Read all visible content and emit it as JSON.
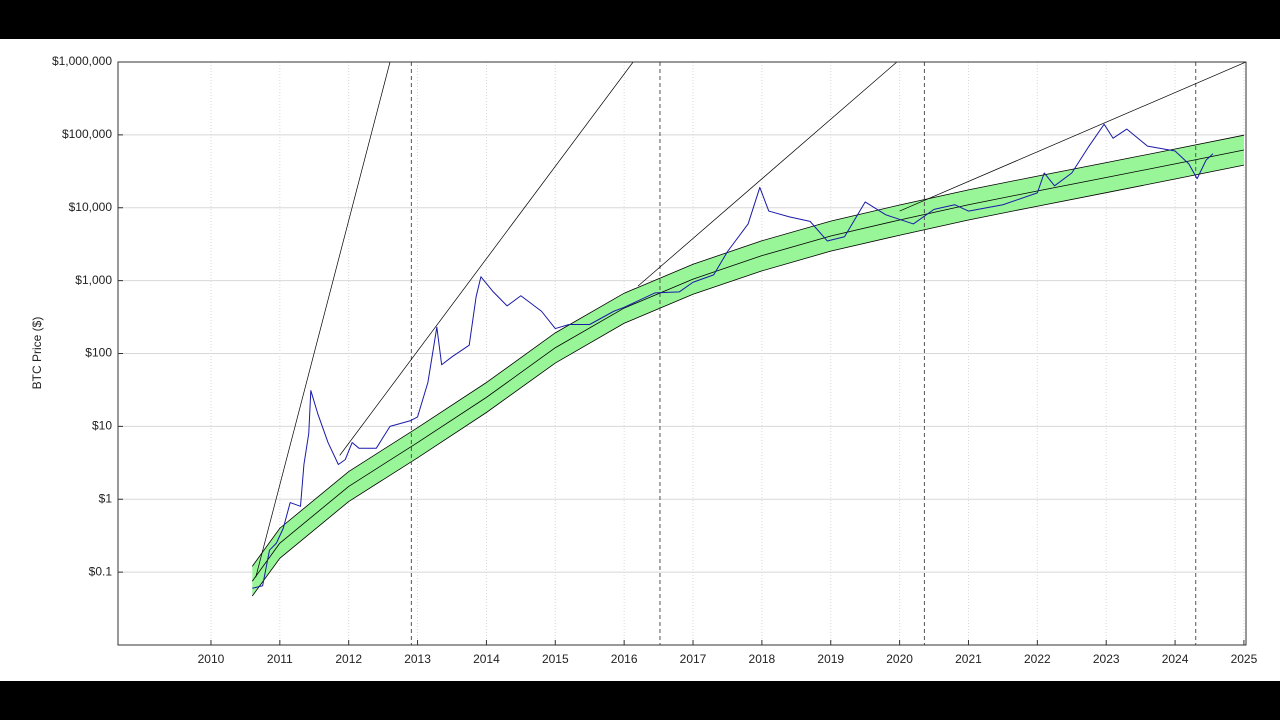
{
  "chart_data": {
    "type": "line",
    "y_label": "BTC Price ($)",
    "log_y": true,
    "grid": true,
    "xlim": [
      2008.65,
      2025.03
    ],
    "ylim": [
      0.01,
      1000000
    ],
    "xticks": [
      2010,
      2011,
      2012,
      2013,
      2014,
      2015,
      2016,
      2017,
      2018,
      2019,
      2020,
      2021,
      2022,
      2023,
      2024,
      2025
    ],
    "yticks": [
      {
        "value": 0.1,
        "label": "$0.1"
      },
      {
        "value": 1,
        "label": "$1"
      },
      {
        "value": 10,
        "label": "$10"
      },
      {
        "value": 100,
        "label": "$100"
      },
      {
        "value": 1000,
        "label": "$1,000"
      },
      {
        "value": 10000,
        "label": "$10,000"
      },
      {
        "value": 100000,
        "label": "$100,000"
      },
      {
        "value": 1000000,
        "label": "$1,000,000"
      }
    ],
    "band": {
      "color": "#98f598",
      "x": [
        2010.6,
        2011,
        2012,
        2013,
        2014,
        2015,
        2016,
        2017,
        2018,
        2019,
        2020,
        2021,
        2022,
        2023,
        2024,
        2025
      ],
      "upper": [
        0.12,
        0.4,
        2.4,
        9.6,
        40,
        192,
        672,
        1680,
        3520,
        6560,
        10900,
        17600,
        27200,
        41600,
        64000,
        99000
      ],
      "lower": [
        0.047,
        0.155,
        0.93,
        3.7,
        15.5,
        74,
        260,
        650,
        1360,
        2540,
        4200,
        6800,
        10500,
        16100,
        24800,
        38400
      ]
    },
    "vlines": {
      "color": "#555555",
      "dashed": true,
      "x": [
        2012.91,
        2016.52,
        2020.36,
        2024.3
      ]
    },
    "series": [
      {
        "color": "#000000",
        "width": 0.8,
        "x": [
          2010.6,
          2011,
          2012,
          2013,
          2014,
          2015,
          2016,
          2017,
          2018,
          2019,
          2020,
          2021,
          2022,
          2023,
          2024,
          2025
        ],
        "values": [
          0.075,
          0.25,
          1.5,
          6,
          25,
          120,
          420,
          1050,
          2200,
          4100,
          6800,
          11000,
          17000,
          26000,
          40000,
          62000
        ]
      },
      {
        "color": "#000000",
        "width": 0.7,
        "x": [
          2010.65,
          2012.6
        ],
        "values": [
          0.085,
          1000000
        ]
      },
      {
        "color": "#000000",
        "width": 0.7,
        "x": [
          2011.87,
          2016.13
        ],
        "values": [
          4,
          1000000
        ]
      },
      {
        "color": "#000000",
        "width": 0.7,
        "x": [
          2016.2,
          2019.96
        ],
        "values": [
          840,
          1000000
        ]
      },
      {
        "color": "#000000",
        "width": 0.7,
        "x": [
          2020.0,
          2025.03
        ],
        "values": [
          9000,
          1000000
        ]
      },
      {
        "color": "#1a1aa8",
        "width": 1,
        "x": [
          2010.6,
          2010.75,
          2010.85,
          2010.95,
          2011.05,
          2011.15,
          2011.3,
          2011.35,
          2011.42,
          2011.45,
          2011.55,
          2011.7,
          2011.85,
          2011.95,
          2012.05,
          2012.15,
          2012.4,
          2012.6,
          2012.9,
          2013.0,
          2013.15,
          2013.28,
          2013.35,
          2013.5,
          2013.75,
          2013.85,
          2013.92,
          2014.1,
          2014.3,
          2014.5,
          2014.8,
          2015.0,
          2015.2,
          2015.5,
          2015.85,
          2016.0,
          2016.45,
          2016.8,
          2017.0,
          2017.3,
          2017.5,
          2017.8,
          2017.97,
          2018.1,
          2018.4,
          2018.7,
          2018.95,
          2019.2,
          2019.5,
          2019.8,
          2020.2,
          2020.5,
          2020.8,
          2021.0,
          2021.5,
          2022.0,
          2022.1,
          2022.25,
          2022.5,
          2022.75,
          2022.97,
          2023.1,
          2023.3,
          2023.6,
          2024.0,
          2024.2,
          2024.32,
          2024.45,
          2024.55
        ],
        "values": [
          0.06,
          0.065,
          0.2,
          0.25,
          0.4,
          0.9,
          0.8,
          3,
          8,
          31,
          15,
          6,
          3,
          3.5,
          6,
          5,
          5,
          10,
          12,
          13.5,
          40,
          230,
          70,
          90,
          130,
          600,
          1130,
          700,
          450,
          620,
          380,
          220,
          250,
          250,
          380,
          430,
          680,
          700,
          950,
          1200,
          2500,
          6000,
          19000,
          9000,
          7500,
          6500,
          3500,
          4000,
          12000,
          8000,
          6000,
          9500,
          11000,
          9000,
          11000,
          16000,
          30000,
          20000,
          30000,
          70000,
          140000,
          90000,
          120000,
          70000,
          60000,
          40000,
          25000,
          45000,
          55000
        ]
      }
    ]
  }
}
